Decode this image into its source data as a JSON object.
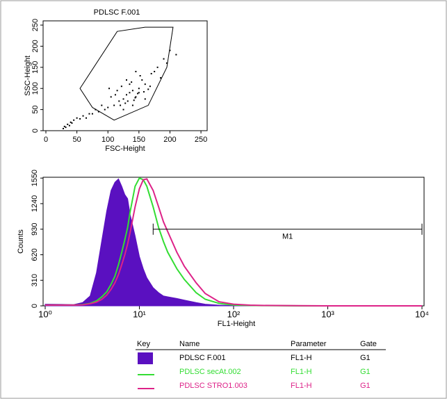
{
  "chart_data": [
    {
      "type": "scatter",
      "title": "PDLSC F.001",
      "xlabel": "FSC-Height",
      "ylabel": "SSC-Height",
      "xlim": [
        0,
        260
      ],
      "ylim": [
        0,
        260
      ],
      "xticks": [
        0,
        50,
        100,
        150,
        200,
        250
      ],
      "yticks": [
        0,
        50,
        100,
        150,
        200,
        250
      ],
      "color": "#000000",
      "x": [
        130,
        140,
        125,
        150,
        118,
        135,
        160,
        145,
        110,
        128,
        155,
        170,
        100,
        122,
        138,
        148,
        165,
        180,
        95,
        105,
        115,
        142,
        152,
        175,
        190,
        85,
        75,
        90,
        60,
        200,
        30,
        35,
        40,
        28,
        45,
        32,
        50,
        38,
        42,
        55,
        120,
        132,
        144,
        158,
        168,
        112,
        102,
        185,
        195,
        210,
        70,
        80,
        65,
        135,
        150,
        125,
        140,
        160,
        145,
        130
      ],
      "y": [
        85,
        95,
        75,
        100,
        70,
        90,
        110,
        80,
        60,
        65,
        120,
        135,
        55,
        105,
        115,
        88,
        98,
        150,
        50,
        80,
        95,
        72,
        130,
        140,
        170,
        45,
        40,
        60,
        35,
        190,
        10,
        15,
        20,
        5,
        25,
        8,
        30,
        12,
        18,
        28,
        60,
        70,
        78,
        92,
        105,
        85,
        100,
        125,
        160,
        180,
        40,
        50,
        30,
        110,
        90,
        50,
        60,
        75,
        140,
        120
      ],
      "gate": {
        "x": [
          55,
          115,
          160,
          205,
          195,
          165,
          110,
          75
        ],
        "y": [
          100,
          235,
          245,
          245,
          150,
          60,
          25,
          55
        ]
      }
    },
    {
      "type": "line",
      "xlabel": "FL1-Height",
      "ylabel": "Counts",
      "log_x": true,
      "xlim": [
        1,
        10000
      ],
      "ylim": [
        0,
        1560
      ],
      "xticks": [
        {
          "value": 1,
          "label": "10⁰"
        },
        {
          "value": 10,
          "label": "10¹"
        },
        {
          "value": 100,
          "label": "10²"
        },
        {
          "value": 1000,
          "label": "10³"
        },
        {
          "value": 10000,
          "label": "10⁴"
        }
      ],
      "yticks": [
        0,
        310,
        620,
        930,
        1240,
        1550
      ],
      "x": [
        1,
        1.5,
        2,
        2.5,
        3,
        3.5,
        4,
        4.5,
        5,
        5.5,
        6,
        6.5,
        7,
        7.5,
        8,
        9,
        10,
        11,
        12,
        14,
        16,
        18,
        20,
        25,
        30,
        40,
        50,
        70,
        100,
        150,
        200,
        500,
        1000,
        10000
      ],
      "series": [
        {
          "name": "PDLSC F.001",
          "color": "#5a10c0",
          "fill": true,
          "parameter": "FL1-H",
          "gate": "G1",
          "values": [
            20,
            18,
            15,
            40,
            120,
            400,
            800,
            1150,
            1400,
            1500,
            1540,
            1450,
            1350,
            1300,
            1100,
            850,
            600,
            450,
            340,
            220,
            160,
            120,
            110,
            90,
            70,
            40,
            20,
            8,
            3,
            1,
            0,
            0,
            0,
            0
          ]
        },
        {
          "name": "PDLSC secAt.002",
          "color": "#33dd33",
          "fill": false,
          "parameter": "FL1-H",
          "gate": "G1",
          "values": [
            10,
            10,
            10,
            15,
            30,
            60,
            110,
            170,
            260,
            360,
            500,
            650,
            800,
            950,
            1150,
            1450,
            1550,
            1530,
            1450,
            1200,
            950,
            780,
            650,
            450,
            320,
            160,
            80,
            30,
            10,
            5,
            3,
            0,
            0,
            0
          ]
        },
        {
          "name": "PDLSC STRO1.003",
          "color": "#dd2288",
          "fill": false,
          "parameter": "FL1-H",
          "gate": "G1",
          "values": [
            10,
            10,
            10,
            12,
            25,
            45,
            80,
            130,
            200,
            280,
            380,
            500,
            620,
            750,
            900,
            1200,
            1420,
            1530,
            1540,
            1400,
            1200,
            1020,
            900,
            650,
            480,
            280,
            150,
            50,
            20,
            8,
            5,
            2,
            0,
            0
          ]
        }
      ],
      "marker": {
        "label": "M1",
        "x": [
          14,
          10000
        ],
        "y": 930
      },
      "legend_headers": [
        "Key",
        "Name",
        "Parameter",
        "Gate"
      ]
    }
  ]
}
